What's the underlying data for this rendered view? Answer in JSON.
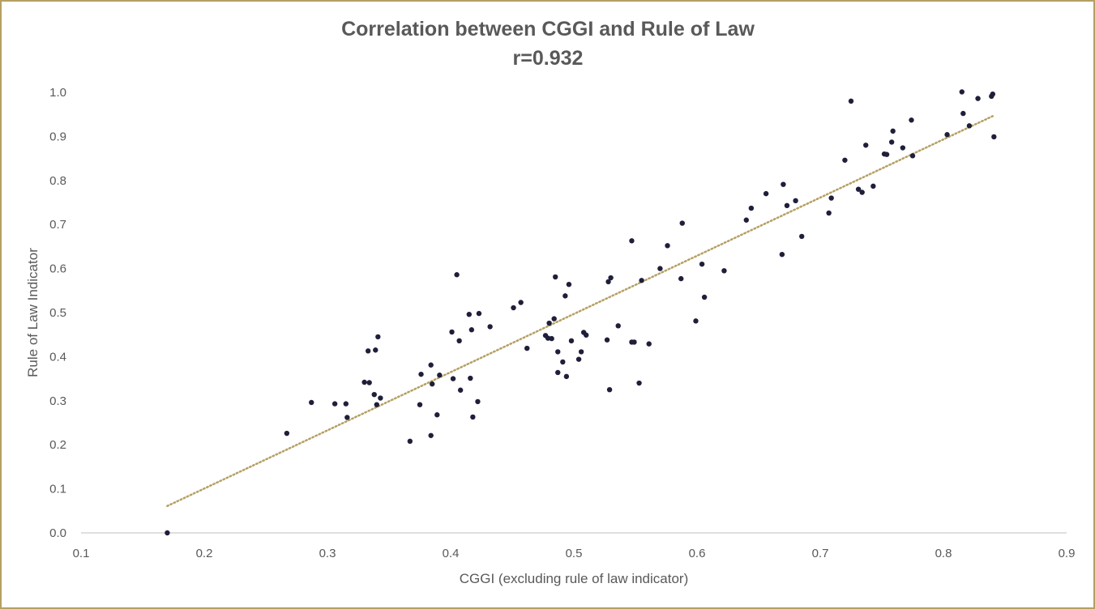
{
  "chart_data": {
    "type": "scatter",
    "title": "Correlation between CGGI and Rule of Law",
    "subtitle": "r=0.932",
    "xlabel": "CGGI (excluding rule of law indicator)",
    "ylabel": "Rule of Law Indicator",
    "xlim": [
      0.1,
      0.9
    ],
    "ylim": [
      0.0,
      1.0
    ],
    "x_ticks": [
      "0.1",
      "0.2",
      "0.3",
      "0.4",
      "0.5",
      "0.6",
      "0.7",
      "0.8",
      "0.9"
    ],
    "y_ticks": [
      "0.0",
      "0.1",
      "0.2",
      "0.3",
      "0.4",
      "0.5",
      "0.6",
      "0.7",
      "0.8",
      "0.9",
      "1.0"
    ],
    "grid": false,
    "legend": "none",
    "point_color": "#1f1f3a",
    "trendline": {
      "style": "dotted",
      "color": "#b5a063",
      "x": [
        0.17,
        0.84
      ],
      "y": [
        0.061,
        0.946
      ]
    },
    "points": [
      [
        0.17,
        0.0
      ],
      [
        0.267,
        0.226
      ],
      [
        0.287,
        0.296
      ],
      [
        0.306,
        0.293
      ],
      [
        0.315,
        0.293
      ],
      [
        0.316,
        0.262
      ],
      [
        0.33,
        0.342
      ],
      [
        0.333,
        0.413
      ],
      [
        0.334,
        0.341
      ],
      [
        0.338,
        0.314
      ],
      [
        0.339,
        0.415
      ],
      [
        0.34,
        0.291
      ],
      [
        0.341,
        0.445
      ],
      [
        0.343,
        0.306
      ],
      [
        0.367,
        0.208
      ],
      [
        0.375,
        0.291
      ],
      [
        0.376,
        0.36
      ],
      [
        0.384,
        0.381
      ],
      [
        0.384,
        0.221
      ],
      [
        0.385,
        0.338
      ],
      [
        0.389,
        0.268
      ],
      [
        0.391,
        0.358
      ],
      [
        0.401,
        0.456
      ],
      [
        0.402,
        0.35
      ],
      [
        0.405,
        0.586
      ],
      [
        0.407,
        0.436
      ],
      [
        0.408,
        0.324
      ],
      [
        0.415,
        0.496
      ],
      [
        0.416,
        0.351
      ],
      [
        0.417,
        0.461
      ],
      [
        0.418,
        0.263
      ],
      [
        0.422,
        0.298
      ],
      [
        0.423,
        0.498
      ],
      [
        0.432,
        0.468
      ],
      [
        0.451,
        0.511
      ],
      [
        0.457,
        0.523
      ],
      [
        0.462,
        0.419
      ],
      [
        0.477,
        0.448
      ],
      [
        0.479,
        0.442
      ],
      [
        0.48,
        0.476
      ],
      [
        0.482,
        0.441
      ],
      [
        0.484,
        0.486
      ],
      [
        0.485,
        0.581
      ],
      [
        0.487,
        0.411
      ],
      [
        0.487,
        0.364
      ],
      [
        0.491,
        0.388
      ],
      [
        0.493,
        0.538
      ],
      [
        0.494,
        0.355
      ],
      [
        0.496,
        0.564
      ],
      [
        0.498,
        0.436
      ],
      [
        0.504,
        0.394
      ],
      [
        0.506,
        0.411
      ],
      [
        0.508,
        0.455
      ],
      [
        0.51,
        0.449
      ],
      [
        0.527,
        0.438
      ],
      [
        0.528,
        0.57
      ],
      [
        0.529,
        0.325
      ],
      [
        0.53,
        0.579
      ],
      [
        0.536,
        0.47
      ],
      [
        0.547,
        0.663
      ],
      [
        0.547,
        0.433
      ],
      [
        0.549,
        0.433
      ],
      [
        0.553,
        0.34
      ],
      [
        0.555,
        0.573
      ],
      [
        0.561,
        0.429
      ],
      [
        0.57,
        0.6
      ],
      [
        0.576,
        0.652
      ],
      [
        0.587,
        0.577
      ],
      [
        0.588,
        0.703
      ],
      [
        0.599,
        0.481
      ],
      [
        0.604,
        0.61
      ],
      [
        0.606,
        0.535
      ],
      [
        0.622,
        0.595
      ],
      [
        0.64,
        0.71
      ],
      [
        0.644,
        0.737
      ],
      [
        0.656,
        0.77
      ],
      [
        0.669,
        0.632
      ],
      [
        0.67,
        0.791
      ],
      [
        0.673,
        0.743
      ],
      [
        0.68,
        0.754
      ],
      [
        0.685,
        0.673
      ],
      [
        0.707,
        0.726
      ],
      [
        0.709,
        0.76
      ],
      [
        0.72,
        0.846
      ],
      [
        0.725,
        0.98
      ],
      [
        0.731,
        0.78
      ],
      [
        0.734,
        0.773
      ],
      [
        0.737,
        0.88
      ],
      [
        0.743,
        0.787
      ],
      [
        0.752,
        0.86
      ],
      [
        0.754,
        0.859
      ],
      [
        0.758,
        0.887
      ],
      [
        0.759,
        0.912
      ],
      [
        0.767,
        0.874
      ],
      [
        0.774,
        0.937
      ],
      [
        0.775,
        0.856
      ],
      [
        0.803,
        0.904
      ],
      [
        0.815,
        1.001
      ],
      [
        0.816,
        0.952
      ],
      [
        0.821,
        0.924
      ],
      [
        0.828,
        0.986
      ],
      [
        0.839,
        0.991
      ],
      [
        0.84,
        0.996
      ],
      [
        0.841,
        0.899
      ]
    ]
  }
}
